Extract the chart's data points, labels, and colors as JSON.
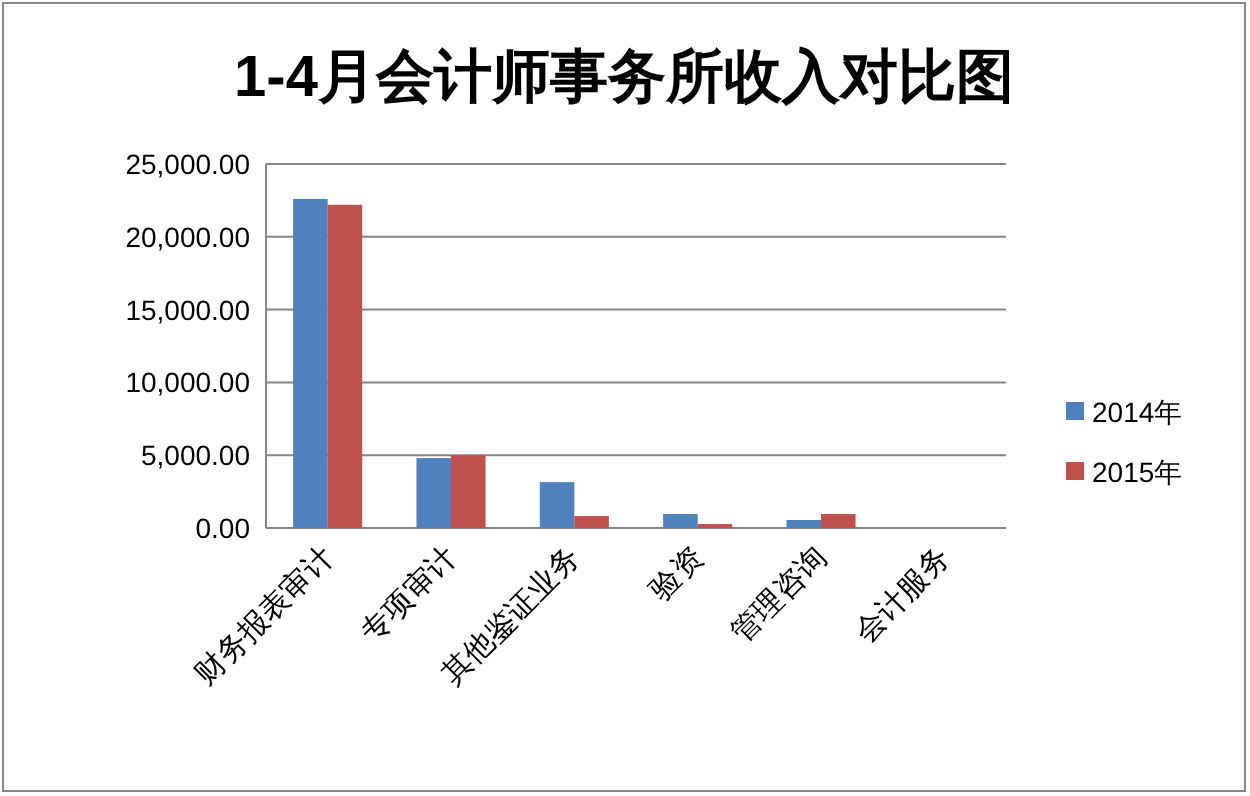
{
  "chart_data": {
    "type": "bar",
    "title": "1-4月会计师事务所收入对比图",
    "categories": [
      "财务报表审计",
      "专项审计",
      "其他鉴证业务",
      "验资",
      "管理咨询",
      "会计服务"
    ],
    "series": [
      {
        "name": "2014年",
        "color": "#4f81bd",
        "values": [
          22600,
          4800,
          3150,
          960,
          550,
          0
        ]
      },
      {
        "name": "2015年",
        "color": "#c0504d",
        "values": [
          22200,
          5000,
          820,
          270,
          960,
          0
        ]
      }
    ],
    "ylim": [
      0,
      25000
    ],
    "yticks": [
      {
        "value": 0,
        "label": "0.00"
      },
      {
        "value": 5000,
        "label": "5,000.00"
      },
      {
        "value": 10000,
        "label": "10,000.00"
      },
      {
        "value": 15000,
        "label": "15,000.00"
      },
      {
        "value": 20000,
        "label": "20,000.00"
      },
      {
        "value": 25000,
        "label": "25,000.00"
      }
    ],
    "grid": "y",
    "legend": "right"
  }
}
